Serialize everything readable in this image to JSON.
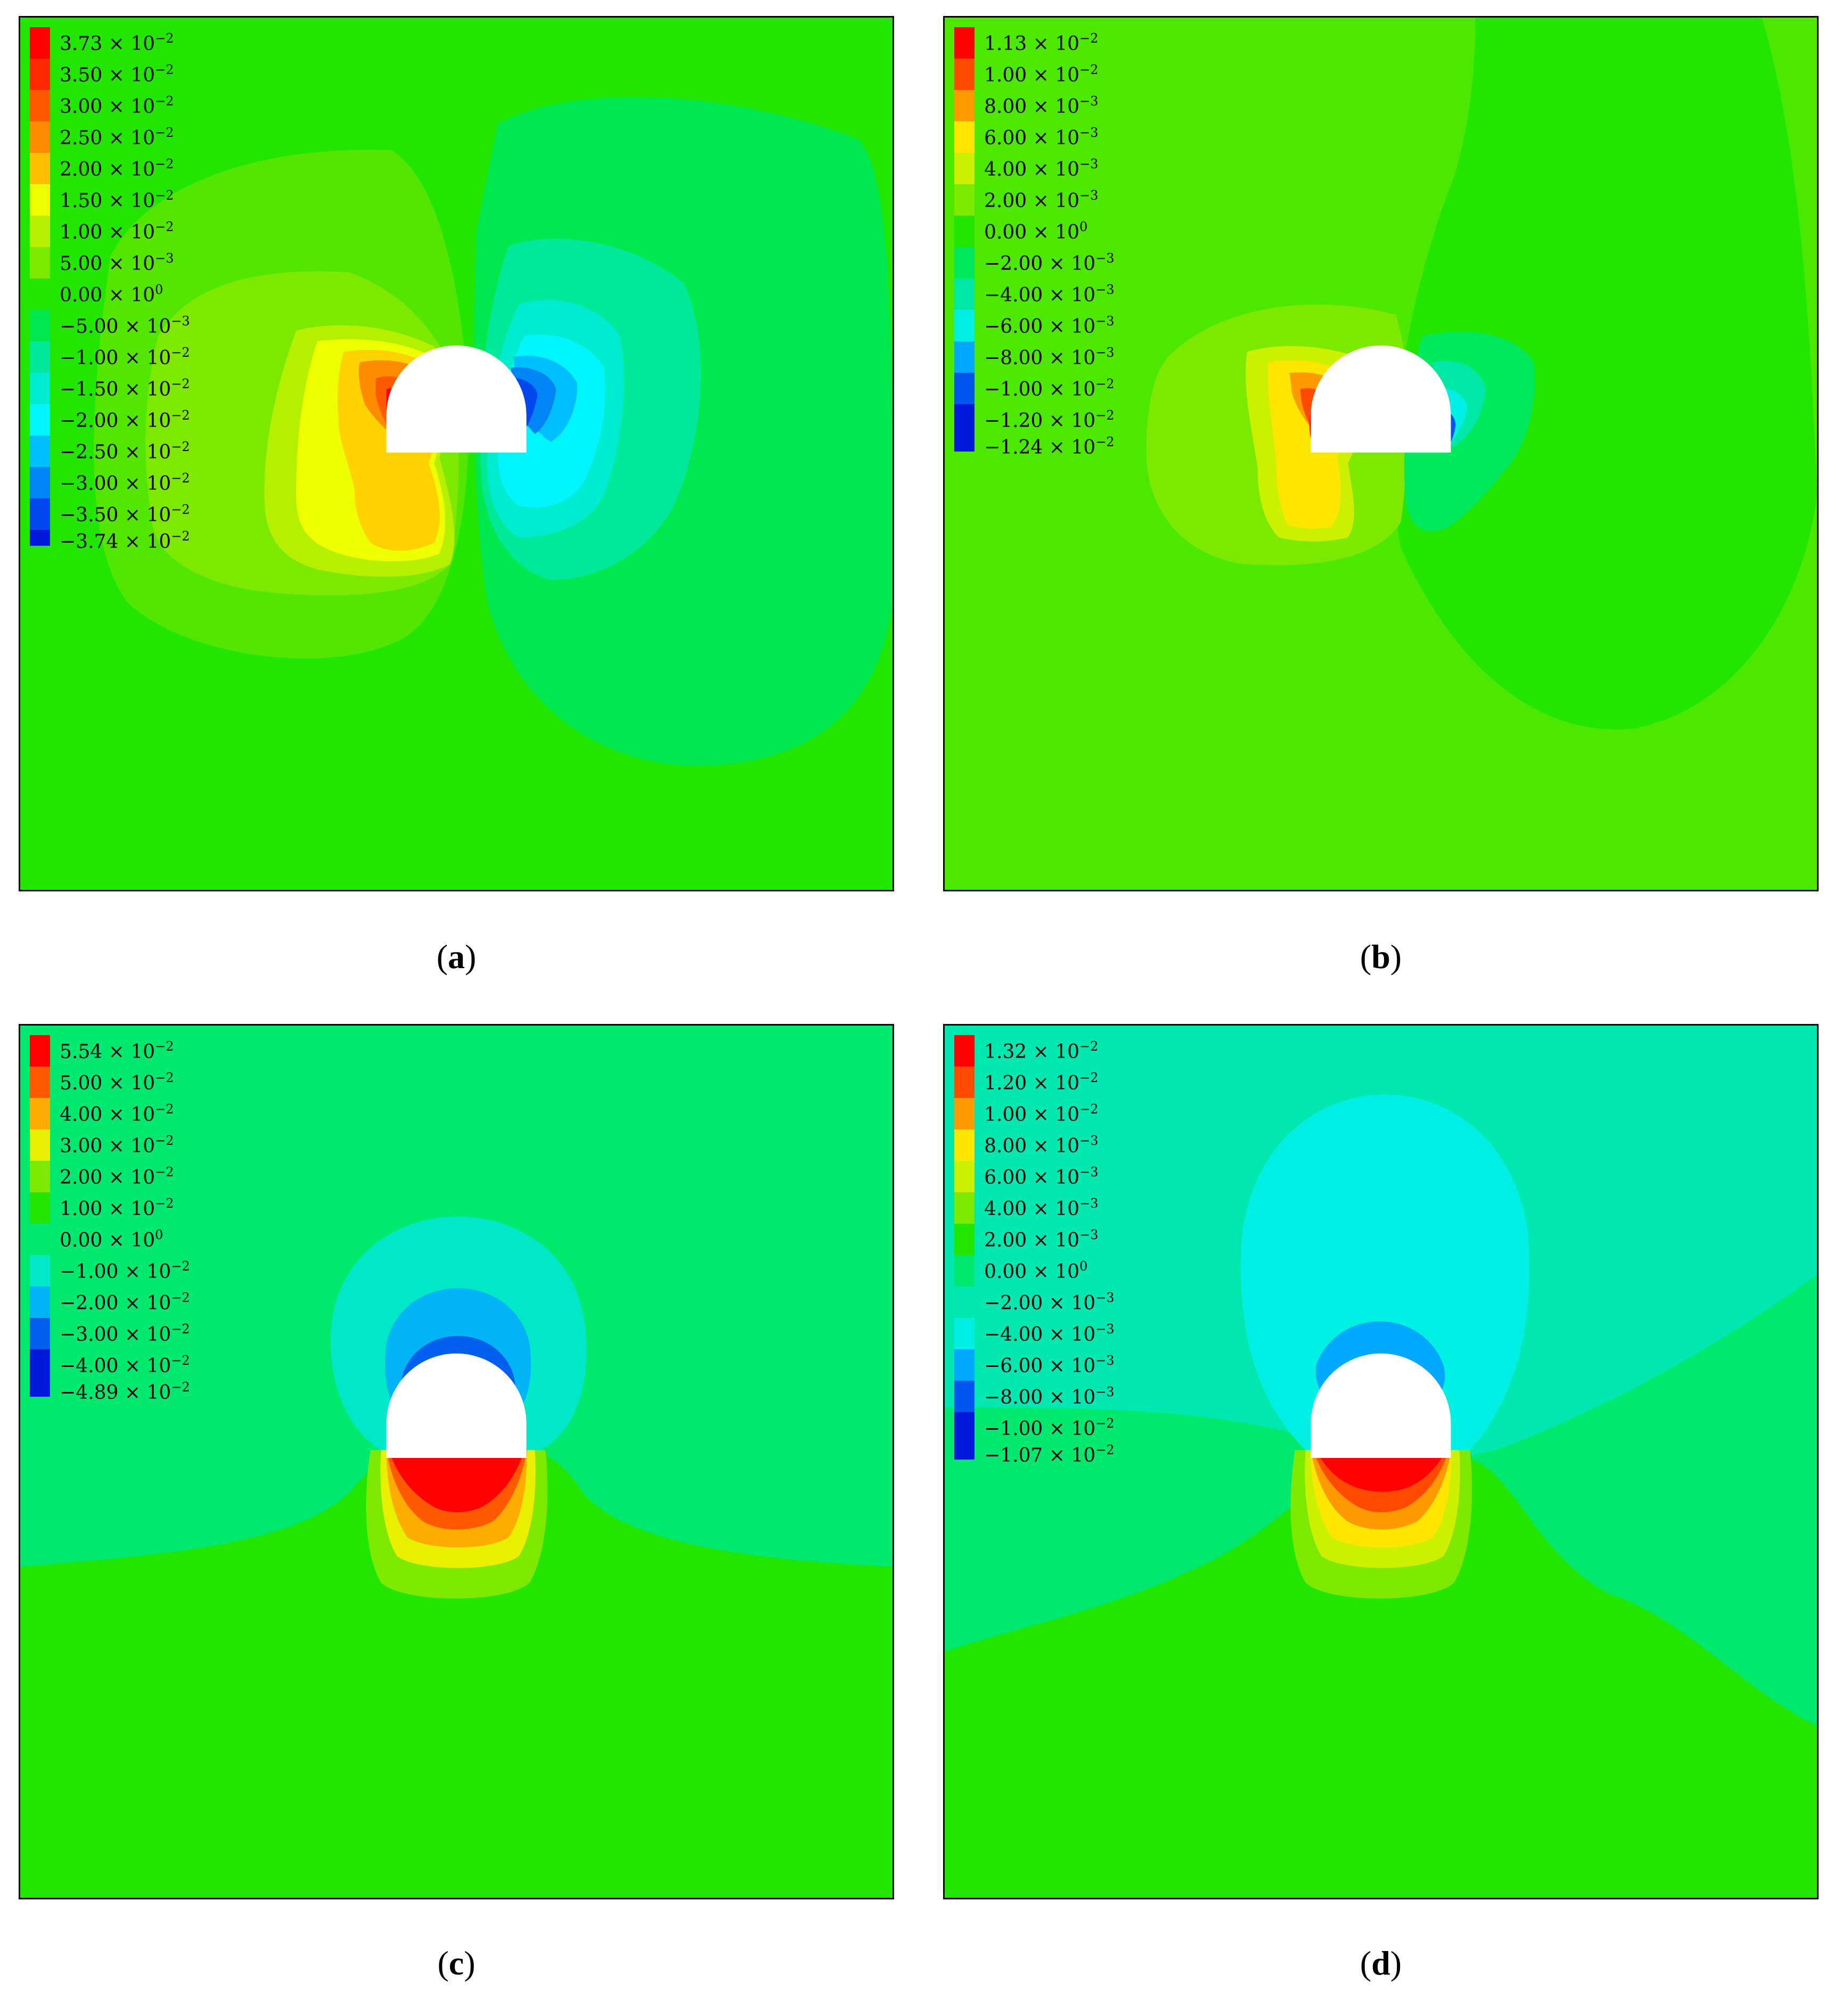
{
  "chart_data": [
    {
      "type": "heatmap",
      "panel": "(a)",
      "legend": {
        "labels": [
          [
            "3.73",
            "-2"
          ],
          [
            "3.50",
            "-2"
          ],
          [
            "3.00",
            "-2"
          ],
          [
            "2.50",
            "-2"
          ],
          [
            "2.00",
            "-2"
          ],
          [
            "1.50",
            "-2"
          ],
          [
            "1.00",
            "-2"
          ],
          [
            "5.00",
            "-3"
          ],
          [
            "0.00",
            "0"
          ],
          [
            "−5.00",
            "-3"
          ],
          [
            "−1.00",
            "-2"
          ],
          [
            "−1.50",
            "-2"
          ],
          [
            "−2.00",
            "-2"
          ],
          [
            "−2.50",
            "-2"
          ],
          [
            "−3.00",
            "-2"
          ],
          [
            "−3.50",
            "-2"
          ],
          [
            "−3.74",
            "-2"
          ]
        ],
        "colors": [
          "#ff0000",
          "#ff2a00",
          "#ff5a00",
          "#ff8c00",
          "#ffbf00",
          "#eeff00",
          "#b4f000",
          "#7de800",
          "#22e600",
          "#00e84f",
          "#00e89a",
          "#00ecd0",
          "#00f5ff",
          "#00bfff",
          "#0085f5",
          "#0048ee",
          "#0018d9"
        ],
        "max": 0.0373,
        "min": -0.0374
      },
      "background_color": "#22e600"
    },
    {
      "type": "heatmap",
      "panel": "(b)",
      "legend": {
        "labels": [
          [
            "1.13",
            "-2"
          ],
          [
            "1.00",
            "-2"
          ],
          [
            "8.00",
            "-3"
          ],
          [
            "6.00",
            "-3"
          ],
          [
            "4.00",
            "-3"
          ],
          [
            "2.00",
            "-3"
          ],
          [
            "0.00",
            "0"
          ],
          [
            "−2.00",
            "-3"
          ],
          [
            "−4.00",
            "-3"
          ],
          [
            "−6.00",
            "-3"
          ],
          [
            "−8.00",
            "-3"
          ],
          [
            "−1.00",
            "-2"
          ],
          [
            "−1.20",
            "-2"
          ],
          [
            "−1.24",
            "-2"
          ]
        ],
        "colors": [
          "#ff0000",
          "#ff4a00",
          "#ff9a00",
          "#ffe600",
          "#cbf000",
          "#7de800",
          "#22e600",
          "#00e85c",
          "#00e8a6",
          "#00f0e6",
          "#00a9ff",
          "#0056ee",
          "#0018d9"
        ],
        "max": 0.0113,
        "min": -0.0124
      },
      "background_color": "#4de800"
    },
    {
      "type": "heatmap",
      "panel": "(c)",
      "legend": {
        "labels": [
          [
            "5.54",
            "-2"
          ],
          [
            "5.00",
            "-2"
          ],
          [
            "4.00",
            "-2"
          ],
          [
            "3.00",
            "-2"
          ],
          [
            "2.00",
            "-2"
          ],
          [
            "1.00",
            "-2"
          ],
          [
            "0.00",
            "0"
          ],
          [
            "−1.00",
            "-2"
          ],
          [
            "−2.00",
            "-2"
          ],
          [
            "−3.00",
            "-2"
          ],
          [
            "−4.00",
            "-2"
          ],
          [
            "−4.89",
            "-2"
          ]
        ],
        "colors": [
          "#ff0000",
          "#ff5a00",
          "#ffac00",
          "#e8f000",
          "#7de800",
          "#22e600",
          "#00e86e",
          "#00e8c8",
          "#00b4f5",
          "#0060ee",
          "#0018d9"
        ],
        "max": 0.0554,
        "min": -0.0489
      },
      "background_color": "#22e600"
    },
    {
      "type": "heatmap",
      "panel": "(d)",
      "legend": {
        "labels": [
          [
            "1.32",
            "-2"
          ],
          [
            "1.20",
            "-2"
          ],
          [
            "1.00",
            "-2"
          ],
          [
            "8.00",
            "-3"
          ],
          [
            "6.00",
            "-3"
          ],
          [
            "4.00",
            "-3"
          ],
          [
            "2.00",
            "-3"
          ],
          [
            "0.00",
            "0"
          ],
          [
            "−2.00",
            "-3"
          ],
          [
            "−4.00",
            "-3"
          ],
          [
            "−6.00",
            "-3"
          ],
          [
            "−8.00",
            "-3"
          ],
          [
            "−1.00",
            "-2"
          ],
          [
            "−1.07",
            "-2"
          ]
        ],
        "colors": [
          "#ff0000",
          "#ff4a00",
          "#ff9a00",
          "#ffe600",
          "#cbf000",
          "#7de800",
          "#22e600",
          "#00e86e",
          "#00e8b0",
          "#00f0e6",
          "#00a9ff",
          "#0056ee",
          "#0018d9"
        ],
        "max": 0.0132,
        "min": -0.0107
      },
      "background_color": "#22e600"
    }
  ],
  "captions": {
    "a": {
      "open": "(",
      "letter": "a",
      "close": ")"
    },
    "b": {
      "open": "(",
      "letter": "b",
      "close": ")"
    },
    "c": {
      "open": "(",
      "letter": "c",
      "close": ")"
    },
    "d": {
      "open": "(",
      "letter": "d",
      "close": ")"
    }
  }
}
